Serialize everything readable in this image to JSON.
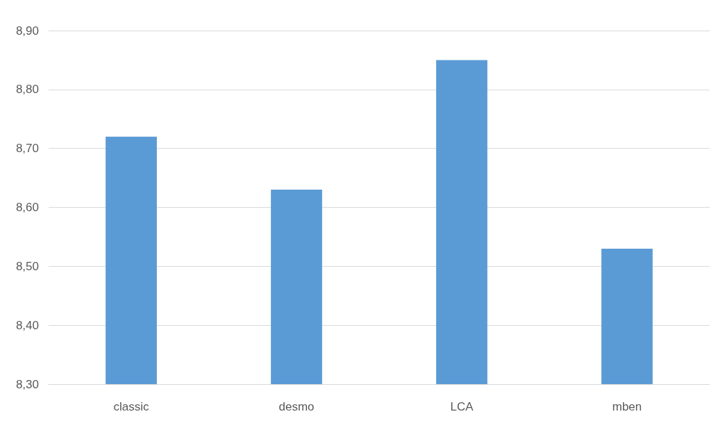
{
  "chart_data": {
    "type": "bar",
    "categories": [
      "classic",
      "desmo",
      "LCA",
      "mben"
    ],
    "values": [
      8.72,
      8.63,
      8.85,
      8.53
    ],
    "color": "#5b9bd5",
    "ylim": [
      8.3,
      8.9
    ],
    "yticks": [
      {
        "value": 8.3,
        "label": "8,30"
      },
      {
        "value": 8.4,
        "label": "8,40"
      },
      {
        "value": 8.5,
        "label": "8,50"
      },
      {
        "value": 8.6,
        "label": "8,60"
      },
      {
        "value": 8.7,
        "label": "8,70"
      },
      {
        "value": 8.8,
        "label": "8,80"
      },
      {
        "value": 8.9,
        "label": "8,90"
      }
    ],
    "grid": "y"
  }
}
